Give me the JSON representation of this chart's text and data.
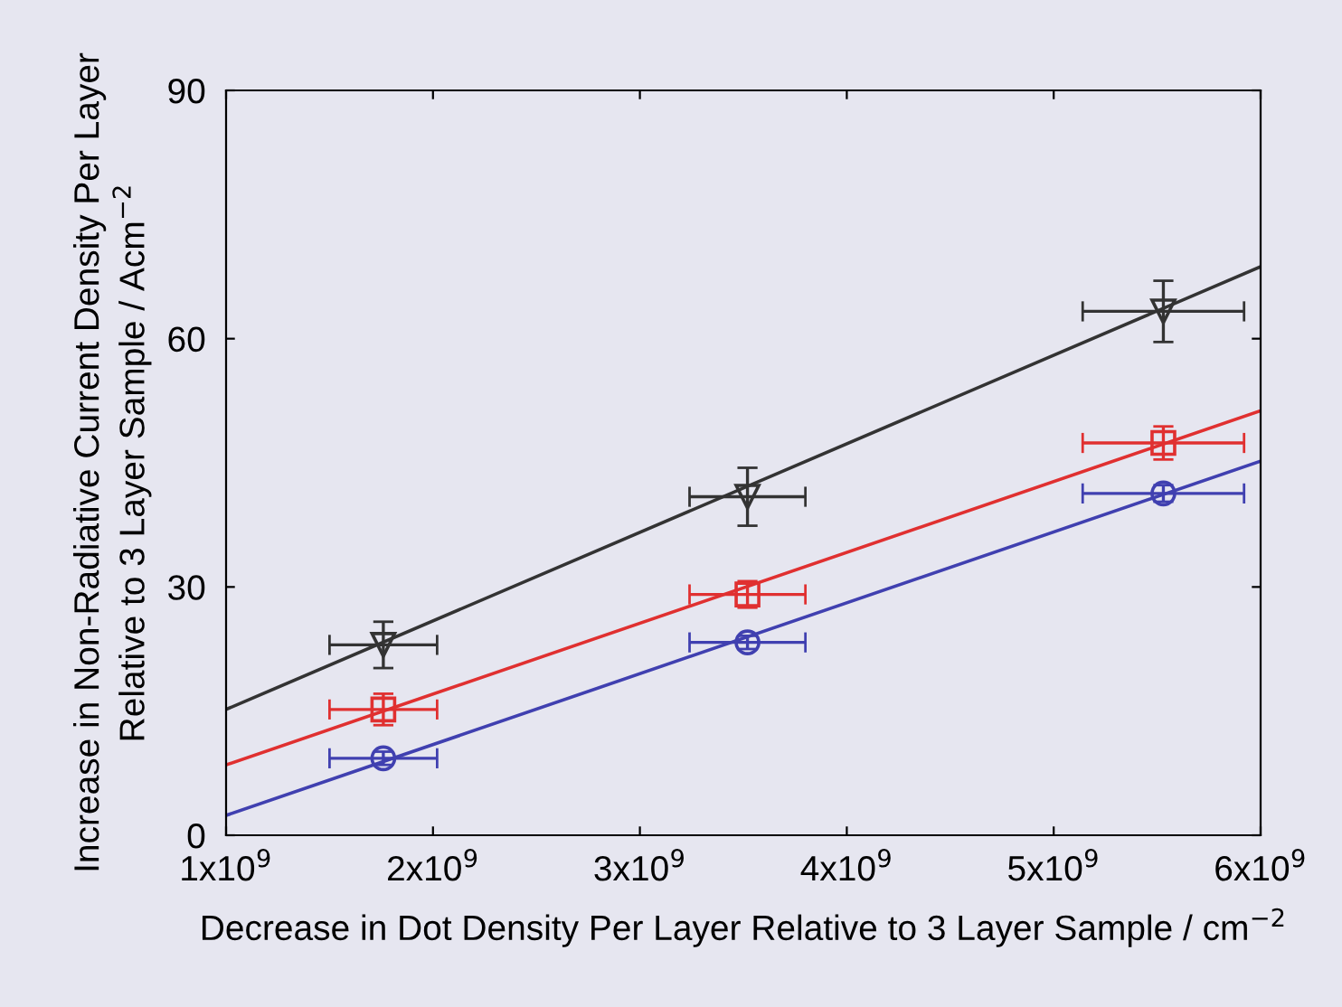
{
  "chart_data": {
    "type": "scatter",
    "xlabel": "Decrease in Dot Density Per Layer Relative to 3 Layer Sample / cm$^{−2}$",
    "ylabel": "Increase in Non-Radiative Current Density Per Layer\nRelative to 3 Layer Sample / Acm$^{−2}$",
    "xlim": [
      1000000000,
      6000000000
    ],
    "ylim": [
      0,
      90
    ],
    "xticks": [
      {
        "value": 1000000000,
        "label": "1x10$^{9}$"
      },
      {
        "value": 2000000000,
        "label": "2x10$^{9}$"
      },
      {
        "value": 3000000000,
        "label": "3x10$^{9}$"
      },
      {
        "value": 4000000000,
        "label": "4x10$^{9}$"
      },
      {
        "value": 5000000000,
        "label": "5x10$^{9}$"
      },
      {
        "value": 6000000000,
        "label": "6x10$^{9}$"
      }
    ],
    "yticks": [
      0,
      30,
      60,
      90
    ],
    "grid": false,
    "legend": false,
    "series": [
      {
        "marker": "triangle",
        "color": "#333333",
        "x": [
          1760000000,
          3520000000,
          5530000000
        ],
        "values": [
          23.0,
          40.9,
          63.3
        ],
        "errors": [
          2.8,
          3.5,
          3.7
        ],
        "xerrors": [
          260000000,
          280000000,
          390000000
        ]
      },
      {
        "marker": "square",
        "color": "#e03030",
        "x": [
          1760000000,
          3520000000,
          5530000000
        ],
        "values": [
          15.2,
          29.1,
          47.4
        ],
        "errors": [
          1.9,
          1.6,
          2.0
        ],
        "xerrors": [
          260000000,
          280000000,
          390000000
        ]
      },
      {
        "marker": "circle",
        "color": "#4040b0",
        "x": [
          1760000000,
          3520000000,
          5530000000
        ],
        "values": [
          9.3,
          23.3,
          41.3
        ],
        "errors": [
          0.8,
          0.8,
          1.0
        ],
        "xerrors": [
          260000000,
          280000000,
          390000000
        ]
      },
      {
        "type": "line",
        "marker": "none",
        "color": "#333333",
        "x": [
          1000000000,
          6000000000
        ],
        "values": [
          15.2,
          68.7
        ]
      },
      {
        "type": "line",
        "marker": "none",
        "color": "#e03030",
        "x": [
          1000000000,
          6000000000
        ],
        "values": [
          8.5,
          51.3
        ]
      },
      {
        "type": "line",
        "marker": "none",
        "color": "#4040b0",
        "x": [
          1000000000,
          6000000000
        ],
        "values": [
          2.4,
          45.2
        ]
      }
    ]
  }
}
